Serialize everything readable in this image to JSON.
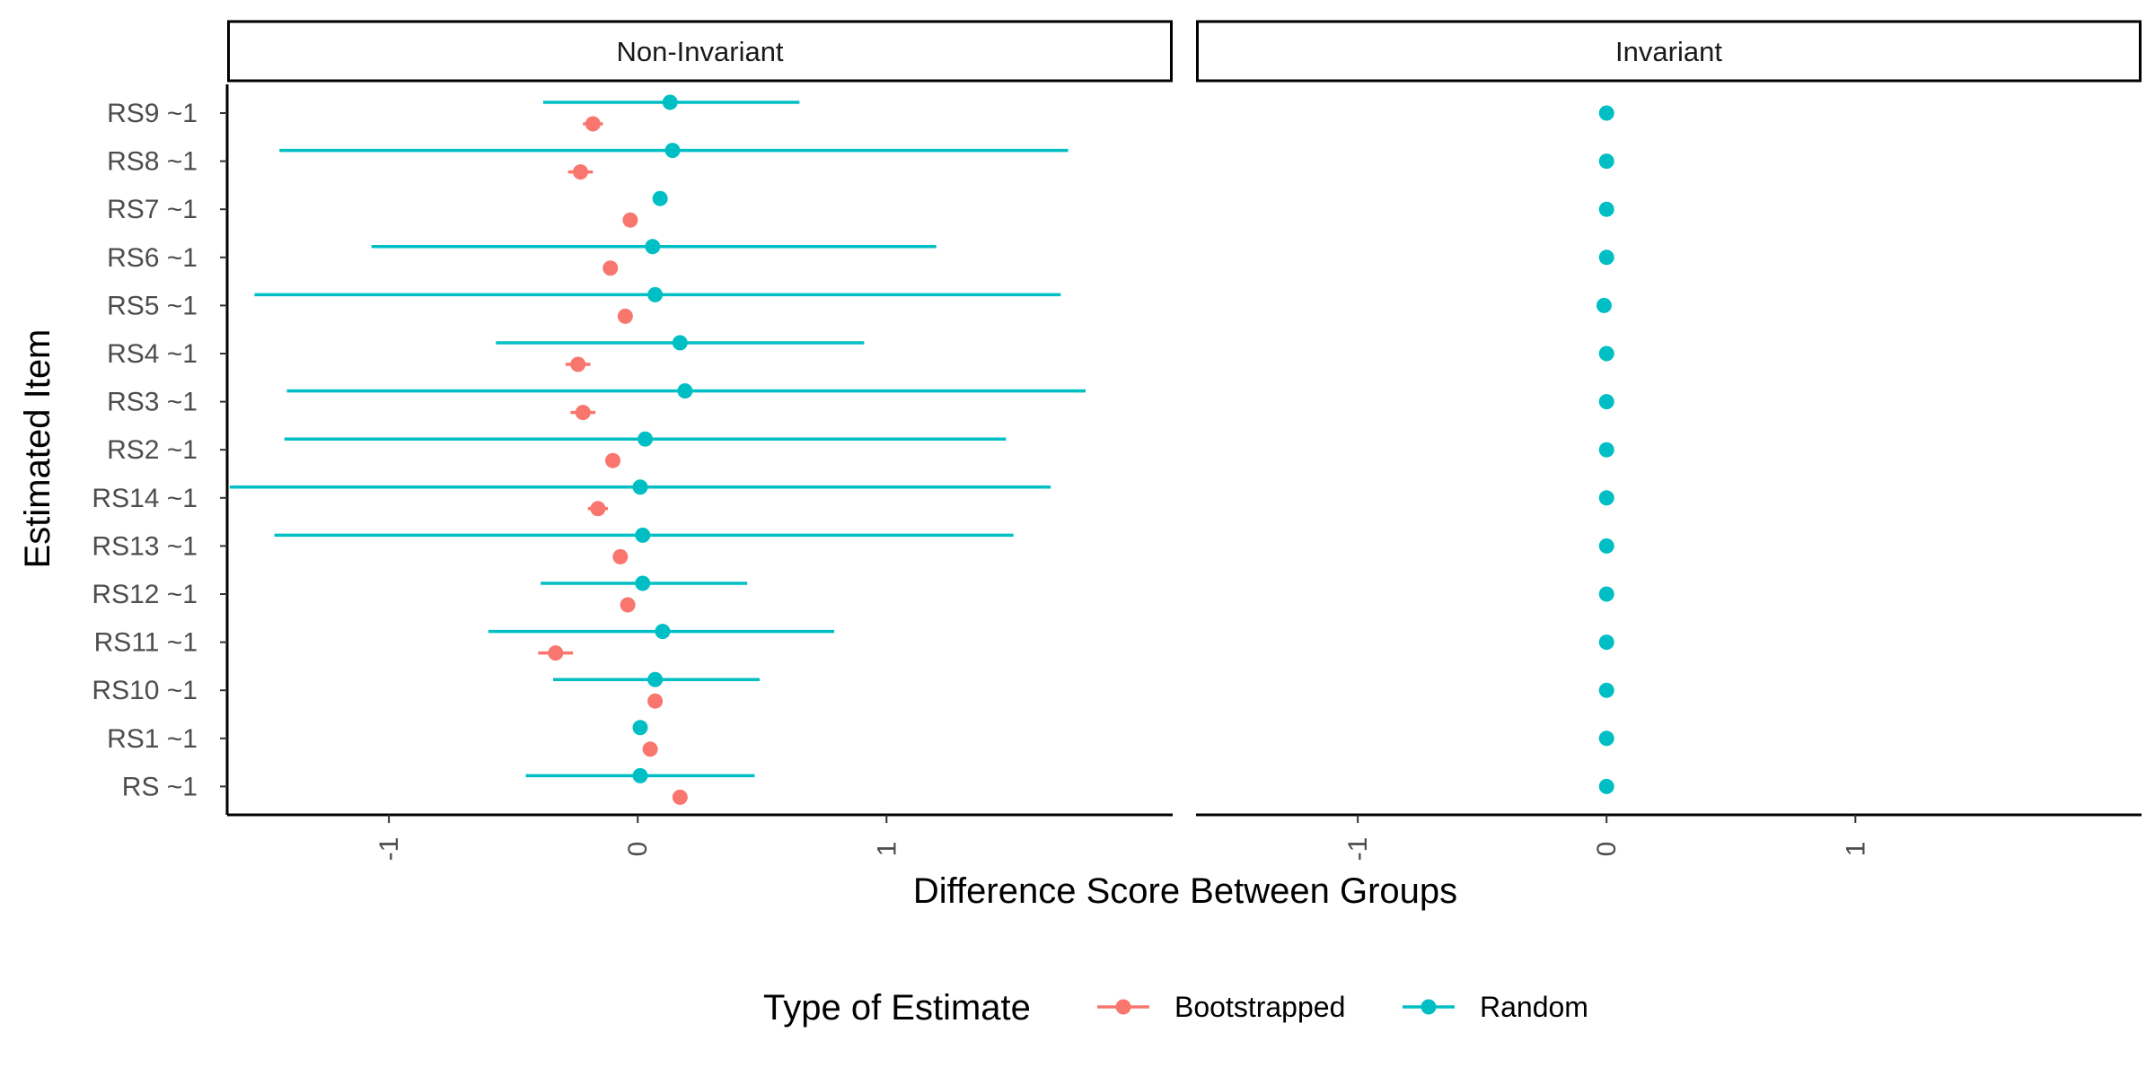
{
  "chart_data": {
    "type": "scatter",
    "ylabel": "Estimated Item",
    "xlabel": "Difference Score Between Groups",
    "xlim": [
      -1.65,
      2.15
    ],
    "x_ticks": [
      -1,
      0,
      1
    ],
    "x_tick_labels": [
      "-1",
      "0",
      "1"
    ],
    "categories": [
      "RS9 ~1",
      "RS8 ~1",
      "RS7 ~1",
      "RS6 ~1",
      "RS5 ~1",
      "RS4 ~1",
      "RS3 ~1",
      "RS2 ~1",
      "RS14 ~1",
      "RS13 ~1",
      "RS12 ~1",
      "RS11 ~1",
      "RS10 ~1",
      "RS1 ~1",
      "RS ~1"
    ],
    "grid": false,
    "legend": {
      "title": "Type of Estimate",
      "position": "bottom",
      "entries": [
        {
          "name": "Bootstrapped",
          "color": "#F8766D"
        },
        {
          "name": "Random",
          "color": "#00BFC4"
        }
      ]
    },
    "panels": [
      {
        "title": "Non-Invariant",
        "series": [
          {
            "name": "Bootstrapped",
            "color": "#F8766D",
            "offset": "below",
            "points": [
              {
                "y": "RS9 ~1",
                "x": -0.18,
                "lo": -0.22,
                "hi": -0.14
              },
              {
                "y": "RS8 ~1",
                "x": -0.23,
                "lo": -0.28,
                "hi": -0.18
              },
              {
                "y": "RS7 ~1",
                "x": -0.03,
                "lo": -0.03,
                "hi": -0.03
              },
              {
                "y": "RS6 ~1",
                "x": -0.11,
                "lo": -0.11,
                "hi": -0.11
              },
              {
                "y": "RS5 ~1",
                "x": -0.05,
                "lo": -0.05,
                "hi": -0.05
              },
              {
                "y": "RS4 ~1",
                "x": -0.24,
                "lo": -0.29,
                "hi": -0.19
              },
              {
                "y": "RS3 ~1",
                "x": -0.22,
                "lo": -0.27,
                "hi": -0.17
              },
              {
                "y": "RS2 ~1",
                "x": -0.1,
                "lo": -0.1,
                "hi": -0.1
              },
              {
                "y": "RS14 ~1",
                "x": -0.16,
                "lo": -0.2,
                "hi": -0.12
              },
              {
                "y": "RS13 ~1",
                "x": -0.07,
                "lo": -0.07,
                "hi": -0.07
              },
              {
                "y": "RS12 ~1",
                "x": -0.04,
                "lo": -0.04,
                "hi": -0.04
              },
              {
                "y": "RS11 ~1",
                "x": -0.33,
                "lo": -0.4,
                "hi": -0.26
              },
              {
                "y": "RS10 ~1",
                "x": 0.07,
                "lo": 0.07,
                "hi": 0.07
              },
              {
                "y": "RS1 ~1",
                "x": 0.05,
                "lo": 0.05,
                "hi": 0.05
              },
              {
                "y": "RS ~1",
                "x": 0.17,
                "lo": 0.17,
                "hi": 0.17
              }
            ]
          },
          {
            "name": "Random",
            "color": "#00BFC4",
            "offset": "above",
            "points": [
              {
                "y": "RS9 ~1",
                "x": 0.13,
                "lo": -0.38,
                "hi": 0.65
              },
              {
                "y": "RS8 ~1",
                "x": 0.14,
                "lo": -1.44,
                "hi": 1.73
              },
              {
                "y": "RS7 ~1",
                "x": 0.09,
                "lo": 0.09,
                "hi": 0.09
              },
              {
                "y": "RS6 ~1",
                "x": 0.06,
                "lo": -1.07,
                "hi": 1.2
              },
              {
                "y": "RS5 ~1",
                "x": 0.07,
                "lo": -1.54,
                "hi": 1.7
              },
              {
                "y": "RS4 ~1",
                "x": 0.17,
                "lo": -0.57,
                "hi": 0.91
              },
              {
                "y": "RS3 ~1",
                "x": 0.19,
                "lo": -1.41,
                "hi": 1.8
              },
              {
                "y": "RS2 ~1",
                "x": 0.03,
                "lo": -1.42,
                "hi": 1.48
              },
              {
                "y": "RS14 ~1",
                "x": 0.01,
                "lo": -1.64,
                "hi": 1.66
              },
              {
                "y": "RS13 ~1",
                "x": 0.02,
                "lo": -1.46,
                "hi": 1.51
              },
              {
                "y": "RS12 ~1",
                "x": 0.02,
                "lo": -0.39,
                "hi": 0.44
              },
              {
                "y": "RS11 ~1",
                "x": 0.1,
                "lo": -0.6,
                "hi": 0.79
              },
              {
                "y": "RS10 ~1",
                "x": 0.07,
                "lo": -0.34,
                "hi": 0.49
              },
              {
                "y": "RS1 ~1",
                "x": 0.01,
                "lo": 0.01,
                "hi": 0.01
              },
              {
                "y": "RS ~1",
                "x": 0.01,
                "lo": -0.45,
                "hi": 0.47
              }
            ]
          }
        ]
      },
      {
        "title": "Invariant",
        "series": [
          {
            "name": "Random",
            "color": "#00BFC4",
            "offset": "none",
            "points": [
              {
                "y": "RS9 ~1",
                "x": 0.0,
                "lo": 0.0,
                "hi": 0.0
              },
              {
                "y": "RS8 ~1",
                "x": 0.0,
                "lo": 0.0,
                "hi": 0.0
              },
              {
                "y": "RS7 ~1",
                "x": 0.0,
                "lo": 0.0,
                "hi": 0.0
              },
              {
                "y": "RS6 ~1",
                "x": 0.0,
                "lo": 0.0,
                "hi": 0.0
              },
              {
                "y": "RS5 ~1",
                "x": -0.01,
                "lo": -0.01,
                "hi": -0.01
              },
              {
                "y": "RS4 ~1",
                "x": 0.0,
                "lo": 0.0,
                "hi": 0.0
              },
              {
                "y": "RS3 ~1",
                "x": 0.0,
                "lo": 0.0,
                "hi": 0.0
              },
              {
                "y": "RS2 ~1",
                "x": 0.0,
                "lo": 0.0,
                "hi": 0.0
              },
              {
                "y": "RS14 ~1",
                "x": 0.0,
                "lo": 0.0,
                "hi": 0.0
              },
              {
                "y": "RS13 ~1",
                "x": 0.0,
                "lo": 0.0,
                "hi": 0.0
              },
              {
                "y": "RS12 ~1",
                "x": 0.0,
                "lo": 0.0,
                "hi": 0.0
              },
              {
                "y": "RS11 ~1",
                "x": 0.0,
                "lo": 0.0,
                "hi": 0.0
              },
              {
                "y": "RS10 ~1",
                "x": 0.0,
                "lo": 0.0,
                "hi": 0.0
              },
              {
                "y": "RS1 ~1",
                "x": 0.0,
                "lo": 0.0,
                "hi": 0.0
              },
              {
                "y": "RS ~1",
                "x": 0.0,
                "lo": 0.0,
                "hi": 0.0
              }
            ]
          }
        ]
      }
    ]
  }
}
